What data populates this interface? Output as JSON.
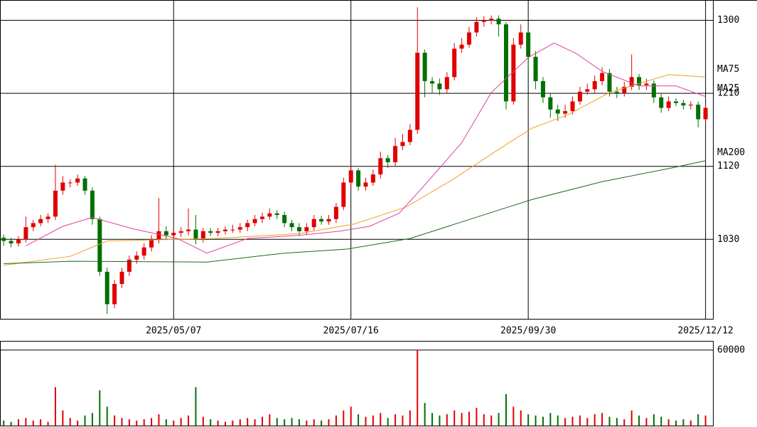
{
  "chart_data": {
    "type": "candlestick",
    "up_color": "#e00000",
    "down_color": "#007000",
    "x": [
      0,
      2,
      4,
      6,
      8,
      10,
      12,
      14,
      16,
      18,
      20,
      22,
      24,
      26,
      28,
      30,
      32,
      34,
      36,
      38,
      40,
      42,
      44,
      46,
      48,
      50,
      52,
      54,
      56,
      58,
      60,
      62,
      64,
      66,
      68,
      70,
      72,
      74,
      76,
      78,
      80,
      82,
      84,
      86,
      88,
      90,
      92,
      94,
      96,
      98,
      100,
      102,
      104,
      106,
      108,
      110,
      112,
      114,
      116,
      118,
      120,
      122,
      124,
      126,
      128,
      130,
      132,
      134,
      136,
      138,
      140,
      142,
      144,
      146,
      148,
      150,
      152,
      154,
      156,
      158,
      160,
      162,
      164,
      166,
      168,
      170,
      172,
      174,
      176,
      178,
      180,
      182,
      184,
      186,
      188,
      190
    ],
    "ohlc": [
      [
        1032,
        1036,
        1022,
        1028
      ],
      [
        1028,
        1032,
        1020,
        1025
      ],
      [
        1025,
        1034,
        1021,
        1030
      ],
      [
        1030,
        1058,
        1026,
        1045
      ],
      [
        1045,
        1054,
        1040,
        1050
      ],
      [
        1050,
        1060,
        1046,
        1055
      ],
      [
        1055,
        1062,
        1050,
        1058
      ],
      [
        1058,
        1122,
        1054,
        1090
      ],
      [
        1090,
        1108,
        1085,
        1100
      ],
      [
        1100,
        1104,
        1094,
        1100
      ],
      [
        1100,
        1110,
        1096,
        1105
      ],
      [
        1105,
        1108,
        1085,
        1090
      ],
      [
        1090,
        1094,
        1048,
        1055
      ],
      [
        1055,
        1058,
        985,
        990
      ],
      [
        990,
        995,
        938,
        950
      ],
      [
        950,
        980,
        945,
        975
      ],
      [
        975,
        995,
        970,
        990
      ],
      [
        990,
        1010,
        985,
        1005
      ],
      [
        1005,
        1015,
        1000,
        1010
      ],
      [
        1010,
        1025,
        1005,
        1020
      ],
      [
        1020,
        1035,
        1015,
        1030
      ],
      [
        1030,
        1081,
        1025,
        1040
      ],
      [
        1040,
        1046,
        1030,
        1035
      ],
      [
        1035,
        1043,
        1030,
        1038
      ],
      [
        1038,
        1045,
        1033,
        1040
      ],
      [
        1040,
        1068,
        1035,
        1042
      ],
      [
        1042,
        1060,
        1024,
        1030
      ],
      [
        1030,
        1044,
        1026,
        1040
      ],
      [
        1040,
        1044,
        1034,
        1038
      ],
      [
        1038,
        1044,
        1034,
        1040
      ],
      [
        1040,
        1046,
        1036,
        1042
      ],
      [
        1042,
        1048,
        1038,
        1042
      ],
      [
        1042,
        1050,
        1038,
        1045
      ],
      [
        1045,
        1054,
        1040,
        1050
      ],
      [
        1050,
        1060,
        1046,
        1055
      ],
      [
        1055,
        1063,
        1050,
        1058
      ],
      [
        1058,
        1068,
        1054,
        1062
      ],
      [
        1062,
        1066,
        1055,
        1060
      ],
      [
        1060,
        1064,
        1045,
        1050
      ],
      [
        1050,
        1054,
        1040,
        1045
      ],
      [
        1045,
        1050,
        1034,
        1040
      ],
      [
        1040,
        1050,
        1036,
        1045
      ],
      [
        1045,
        1060,
        1041,
        1055
      ],
      [
        1055,
        1059,
        1048,
        1052
      ],
      [
        1052,
        1060,
        1048,
        1055
      ],
      [
        1055,
        1075,
        1050,
        1070
      ],
      [
        1070,
        1106,
        1066,
        1100
      ],
      [
        1100,
        1122,
        1095,
        1115
      ],
      [
        1115,
        1118,
        1090,
        1095
      ],
      [
        1095,
        1106,
        1090,
        1100
      ],
      [
        1100,
        1116,
        1096,
        1110
      ],
      [
        1110,
        1138,
        1105,
        1130
      ],
      [
        1130,
        1134,
        1118,
        1125
      ],
      [
        1125,
        1155,
        1120,
        1145
      ],
      [
        1145,
        1160,
        1140,
        1150
      ],
      [
        1150,
        1172,
        1146,
        1165
      ],
      [
        1165,
        1316,
        1160,
        1260
      ],
      [
        1260,
        1264,
        1205,
        1225
      ],
      [
        1225,
        1230,
        1210,
        1222
      ],
      [
        1222,
        1228,
        1208,
        1215
      ],
      [
        1215,
        1236,
        1210,
        1230
      ],
      [
        1230,
        1272,
        1226,
        1265
      ],
      [
        1265,
        1278,
        1260,
        1270
      ],
      [
        1270,
        1292,
        1266,
        1285
      ],
      [
        1285,
        1304,
        1280,
        1298
      ],
      [
        1298,
        1305,
        1292,
        1300
      ],
      [
        1300,
        1306,
        1295,
        1302
      ],
      [
        1302,
        1306,
        1280,
        1295
      ],
      [
        1295,
        1298,
        1190,
        1200
      ],
      [
        1200,
        1278,
        1196,
        1270
      ],
      [
        1270,
        1295,
        1265,
        1285
      ],
      [
        1285,
        1290,
        1240,
        1255
      ],
      [
        1255,
        1262,
        1215,
        1225
      ],
      [
        1225,
        1230,
        1198,
        1205
      ],
      [
        1205,
        1210,
        1180,
        1190
      ],
      [
        1190,
        1196,
        1176,
        1185
      ],
      [
        1185,
        1196,
        1180,
        1188
      ],
      [
        1188,
        1206,
        1184,
        1200
      ],
      [
        1200,
        1218,
        1196,
        1212
      ],
      [
        1212,
        1222,
        1208,
        1215
      ],
      [
        1215,
        1232,
        1210,
        1225
      ],
      [
        1225,
        1242,
        1220,
        1235
      ],
      [
        1235,
        1240,
        1206,
        1212
      ],
      [
        1212,
        1218,
        1204,
        1210
      ],
      [
        1210,
        1224,
        1206,
        1218
      ],
      [
        1218,
        1258,
        1214,
        1230
      ],
      [
        1230,
        1234,
        1214,
        1220
      ],
      [
        1220,
        1228,
        1214,
        1222
      ],
      [
        1222,
        1226,
        1198,
        1205
      ],
      [
        1205,
        1210,
        1186,
        1192
      ],
      [
        1192,
        1206,
        1188,
        1200
      ],
      [
        1200,
        1204,
        1194,
        1198
      ],
      [
        1198,
        1202,
        1190,
        1195
      ],
      [
        1195,
        1200,
        1190,
        1196
      ],
      [
        1196,
        1200,
        1168,
        1178
      ],
      [
        1178,
        1196,
        1174,
        1192
      ]
    ],
    "volume": [
      4000,
      3000,
      5000,
      6000,
      4000,
      5000,
      3000,
      30500,
      12000,
      6000,
      4000,
      8000,
      10000,
      28000,
      15000,
      8000,
      6000,
      5000,
      4000,
      5000,
      6000,
      9000,
      5000,
      4000,
      6000,
      8000,
      30500,
      7000,
      5000,
      4000,
      3000,
      4000,
      5000,
      6000,
      5000,
      7000,
      9000,
      6000,
      5000,
      6000,
      5000,
      4000,
      5000,
      4000,
      5000,
      8000,
      12000,
      15000,
      9000,
      7000,
      8000,
      10000,
      6000,
      9000,
      8000,
      12000,
      60000,
      18000,
      10000,
      8000,
      9000,
      12000,
      10000,
      11000,
      14000,
      9000,
      8000,
      10000,
      25000,
      15000,
      12000,
      9000,
      8000,
      7000,
      10000,
      8000,
      6000,
      7000,
      8000,
      6000,
      9000,
      10000,
      7000,
      6000,
      5000,
      12000,
      8000,
      6000,
      9000,
      7000,
      5000,
      4000,
      5000,
      4000,
      9000,
      8000
    ],
    "series": [
      {
        "name": "MA75",
        "color": "#f0a020",
        "x": [
          0,
          18,
          28,
          57,
          80,
          95,
          109,
          122,
          134,
          143,
          153,
          164,
          180,
          190
        ],
        "values": [
          998,
          1009,
          1028,
          1031,
          1037,
          1049,
          1070,
          1105,
          1141,
          1167,
          1184,
          1211,
          1233,
          1230
        ]
      },
      {
        "name": "MA25",
        "color": "#e040a0",
        "x": [
          6,
          16,
          24,
          35,
          47,
          55,
          66,
          80,
          91,
          99,
          107,
          114,
          124,
          132,
          142,
          149,
          155,
          162,
          172,
          182,
          190
        ],
        "values": [
          1022,
          1046,
          1057,
          1043,
          1031,
          1013,
          1031,
          1035,
          1040,
          1046,
          1062,
          1097,
          1149,
          1211,
          1254,
          1272,
          1259,
          1237,
          1219,
          1219,
          1206
        ]
      },
      {
        "name": "MA200",
        "color": "#1e6a1e",
        "x": [
          0,
          18,
          55,
          76,
          93,
          110,
          134,
          143,
          162,
          182,
          190
        ],
        "values": [
          1000,
          1003,
          1002,
          1013,
          1018,
          1031,
          1066,
          1079,
          1101,
          1119,
          1127
        ]
      }
    ],
    "xlim": [
      -1,
      192
    ],
    "xticks": [
      {
        "value": 46,
        "label": "2025/05/07"
      },
      {
        "value": 94,
        "label": "2025/07/16"
      },
      {
        "value": 142,
        "label": "2025/09/30"
      },
      {
        "value": 190,
        "label": "2025/12/12"
      }
    ],
    "ylim": [
      932,
      1325
    ],
    "yticks": [
      1030,
      1120,
      1210,
      1300
    ],
    "volume_ylim": [
      0,
      66700
    ],
    "volume_yticks": [
      60000
    ],
    "grid": true
  }
}
